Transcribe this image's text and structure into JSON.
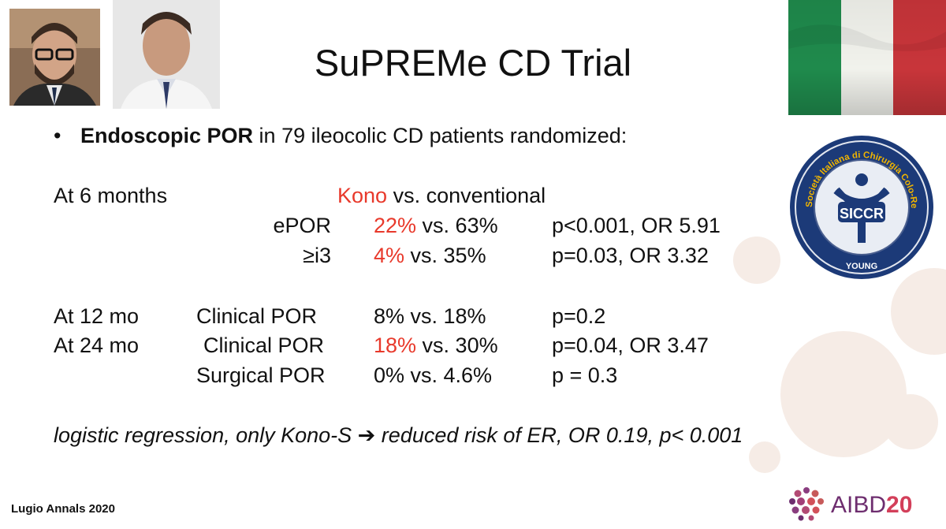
{
  "slide": {
    "title": "SuPREMe CD Trial",
    "bullet": {
      "marker": "•",
      "bold_text": "Endoscopic POR",
      "rest_text": " in 79 ileocolic CD patients randomized:"
    },
    "six_months": {
      "label": "At 6 months",
      "header_red": "Kono",
      "header_rest": " vs. conventional",
      "rows": [
        {
          "label": "ePOR",
          "red": "22%",
          "rest": " vs. 63%",
          "stat": "p<0.001, OR 5.91"
        },
        {
          "label": "≥i3",
          "red": "4%",
          "rest": " vs. 35%",
          "stat": "p=0.03, OR 3.32"
        }
      ]
    },
    "later": [
      {
        "time": "At 12 mo",
        "label": "Clinical POR",
        "red": "",
        "rest": "8% vs. 18%",
        "stat": "p=0.2"
      },
      {
        "time": "At 24 mo",
        "label": "Clinical POR",
        "red": "18%",
        "rest": " vs. 30%",
        "stat": "p=0.04, OR 3.47"
      },
      {
        "time": "",
        "label": "Surgical POR",
        "red": "",
        "rest": "0% vs. 4.6%",
        "stat": "p = 0.3"
      }
    ],
    "regression": "logistic regression, only Kono-S ➔ reduced risk of ER, OR 0.19, p< 0.001",
    "footer_citation": "Lugio Annals 2020",
    "logo_siccr": {
      "ring_text": "Società Italiana di Chirurgia Colo-Rettale",
      "center_text": "SICCR",
      "bottom_text": "YOUNG"
    },
    "logo_aibd": {
      "text": "AIBD",
      "number": "20"
    },
    "colors": {
      "accent_red": "#e8392b",
      "flag_green": "#1f8a4c",
      "flag_white": "#f4f5f0",
      "flag_red": "#c8353a",
      "siccr_blue": "#1c3a78",
      "aibd_purple": "#6e2e6f"
    }
  }
}
